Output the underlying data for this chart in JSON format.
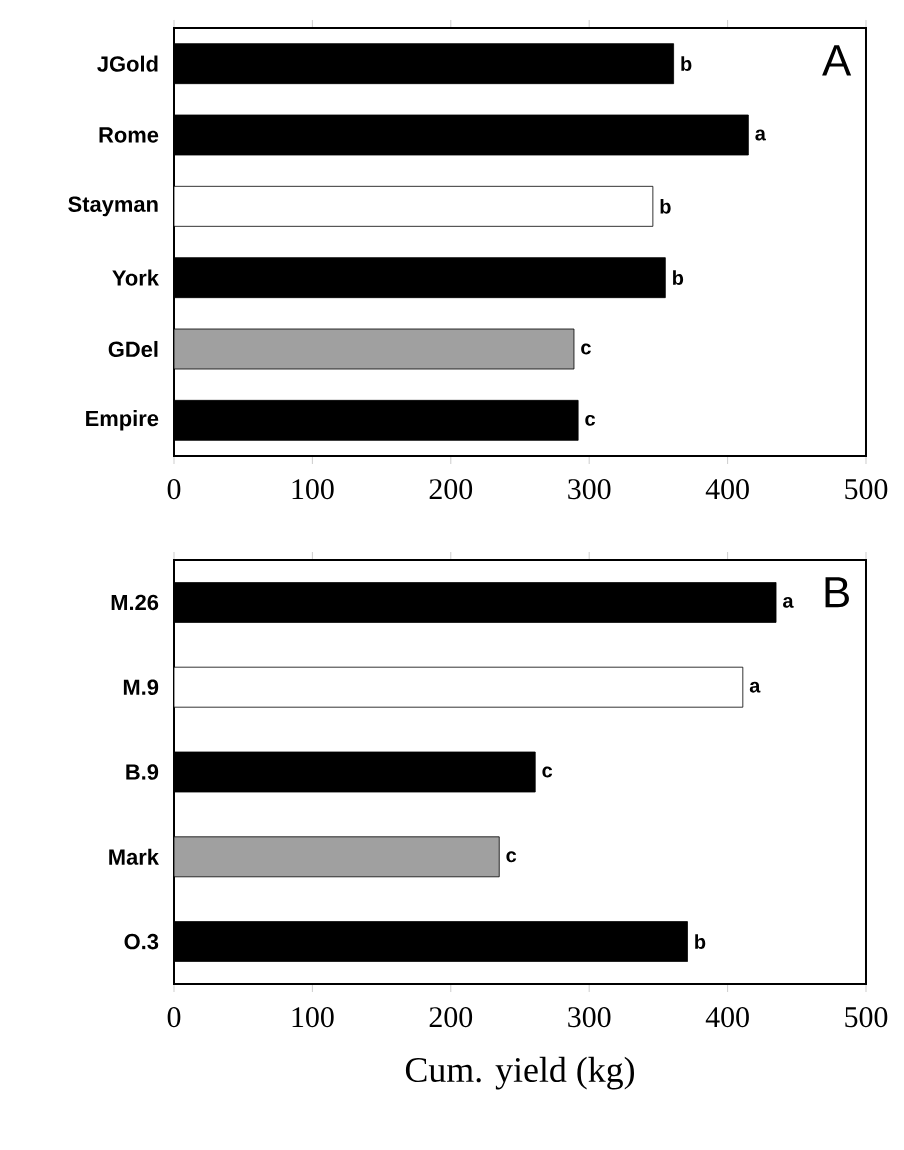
{
  "chart_data": [
    {
      "type": "bar",
      "orientation": "horizontal",
      "categories": [
        "JGold",
        "Rome",
        "Stayman",
        "York",
        "GDel",
        "Empire"
      ],
      "values": [
        361,
        415,
        346,
        355,
        289,
        292
      ],
      "colors": [
        "#000000",
        "#000000",
        "#ffffff",
        "#000000",
        "#a0a0a0",
        "#000000"
      ],
      "value_labels": [
        "b",
        "a",
        "b",
        "b",
        "c",
        "c"
      ],
      "xlim": [
        0,
        500
      ],
      "xticks": [
        0,
        100,
        200,
        300,
        400,
        500
      ],
      "annotations": [
        "A"
      ]
    },
    {
      "type": "bar",
      "orientation": "horizontal",
      "categories": [
        "M.26",
        "M.9",
        "B.9",
        "Mark",
        "O.3"
      ],
      "values": [
        435,
        411,
        261,
        235,
        371
      ],
      "colors": [
        "#000000",
        "#ffffff",
        "#000000",
        "#a0a0a0",
        "#000000"
      ],
      "value_labels": [
        "a",
        "a",
        "c",
        "c",
        "b"
      ],
      "xlim": [
        0,
        500
      ],
      "xticks": [
        0,
        100,
        200,
        300,
        400,
        500
      ],
      "xlabel": "Cum. yield (kg)",
      "annotations": [
        "B"
      ]
    }
  ]
}
